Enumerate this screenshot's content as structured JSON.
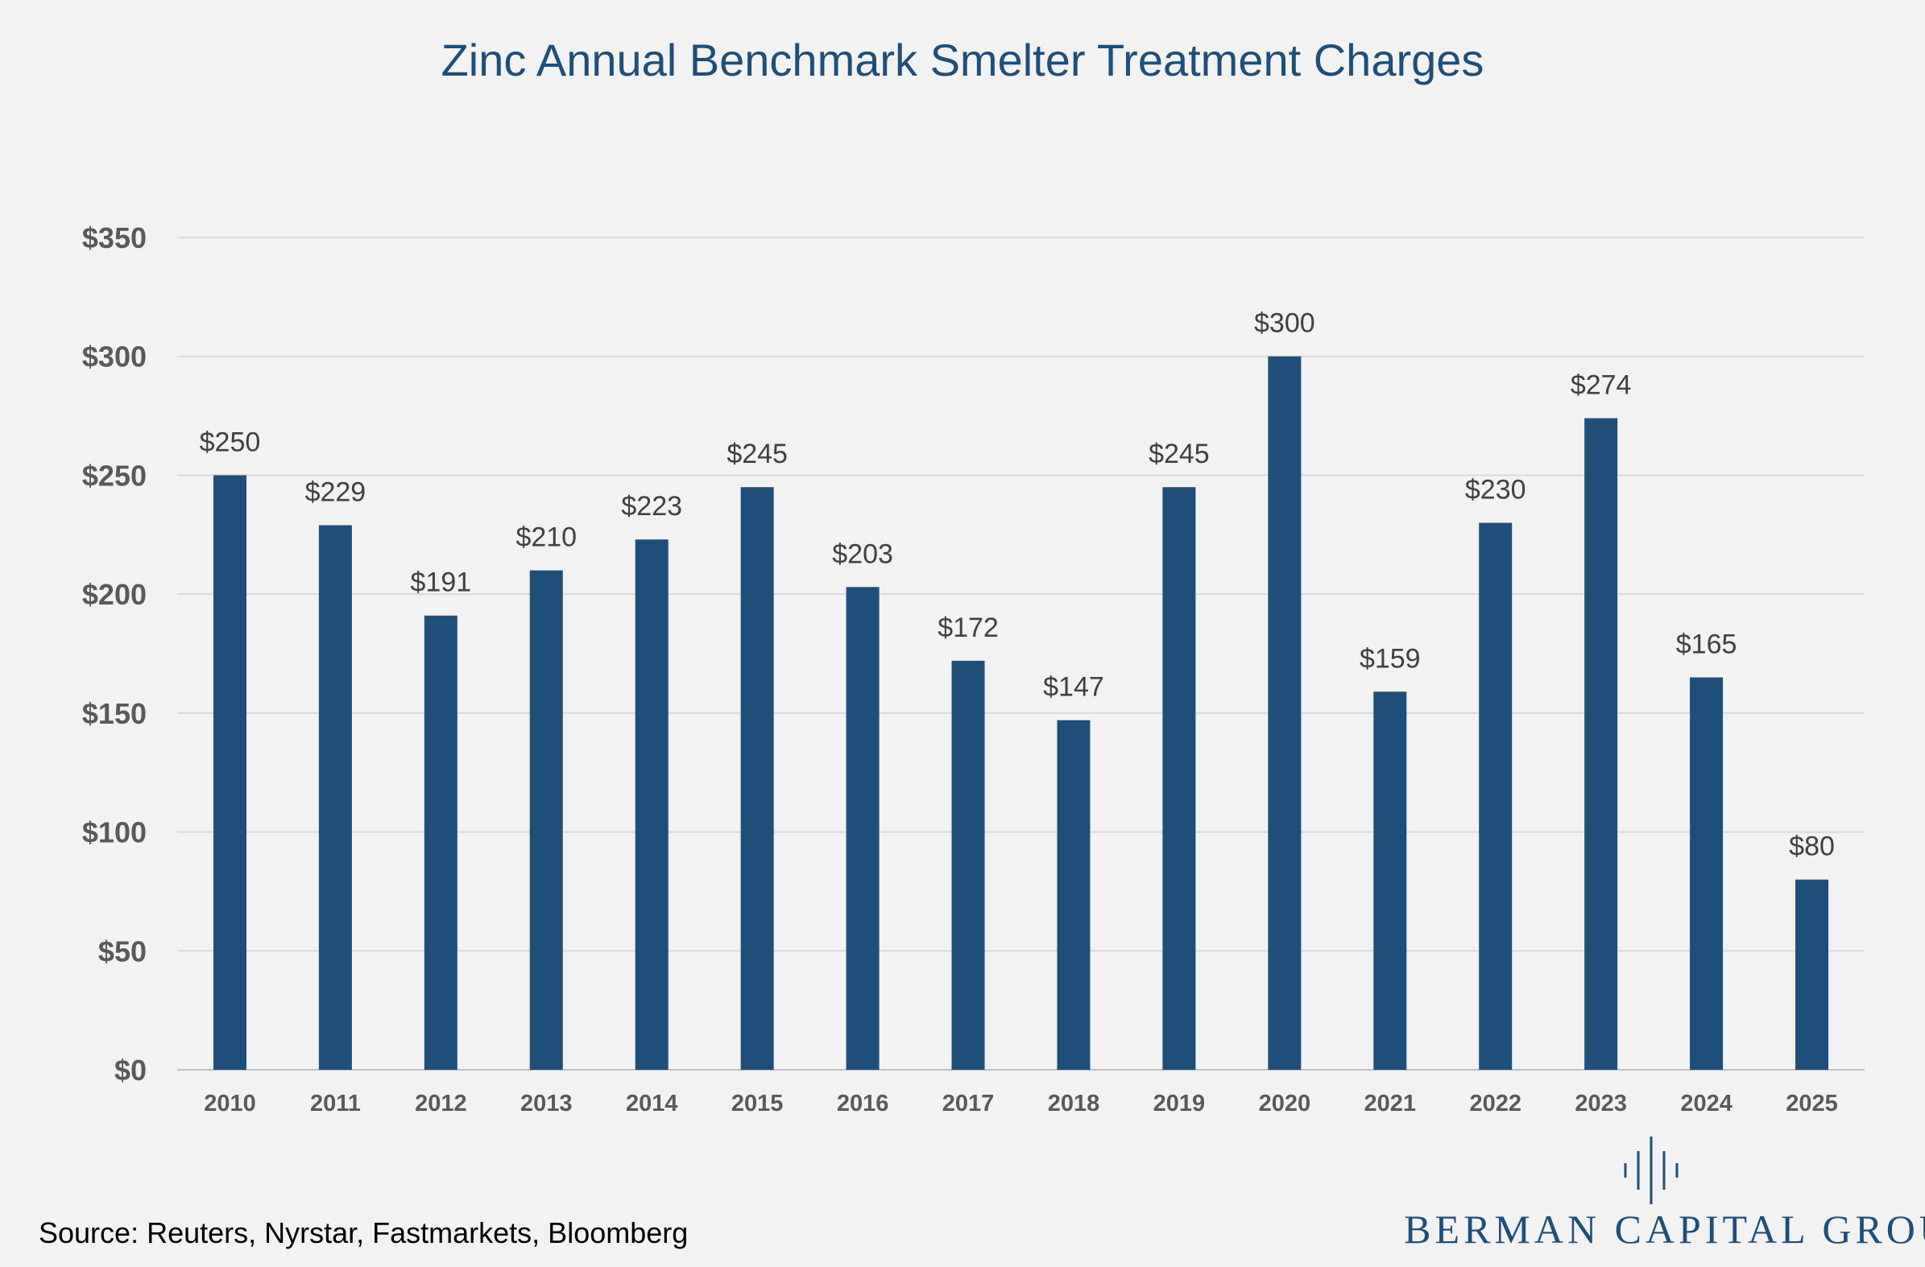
{
  "chart_data": {
    "type": "bar",
    "title": "Zinc Annual Benchmark Smelter Treatment Charges",
    "xlabel": "",
    "ylabel": "",
    "categories": [
      "2010",
      "2011",
      "2012",
      "2013",
      "2014",
      "2015",
      "2016",
      "2017",
      "2018",
      "2019",
      "2020",
      "2021",
      "2022",
      "2023",
      "2024",
      "2025"
    ],
    "values": [
      250,
      229,
      191,
      210,
      223,
      245,
      203,
      172,
      147,
      245,
      300,
      159,
      230,
      274,
      165,
      80
    ],
    "data_labels": [
      "$250",
      "$229",
      "$191",
      "$210",
      "$223",
      "$245",
      "$203",
      "$172",
      "$147",
      "$245",
      "$300",
      "$159",
      "$230",
      "$274",
      "$165",
      "$80"
    ],
    "yticks": [
      0,
      50,
      100,
      150,
      200,
      250,
      300,
      350
    ],
    "ytick_labels": [
      "$0",
      "$50",
      "$100",
      "$150",
      "$200",
      "$250",
      "$300",
      "$350"
    ],
    "ylim": [
      0,
      350
    ],
    "grid": true,
    "legend": "none",
    "bar_color": "#1f4e79"
  },
  "footer": {
    "source": "Source: Reuters, Nyrstar, Fastmarkets, Bloomberg",
    "brand": "BERMAN CAPITAL GROUP",
    "brand_logo_icon": "vertical-lines-logo-icon"
  }
}
